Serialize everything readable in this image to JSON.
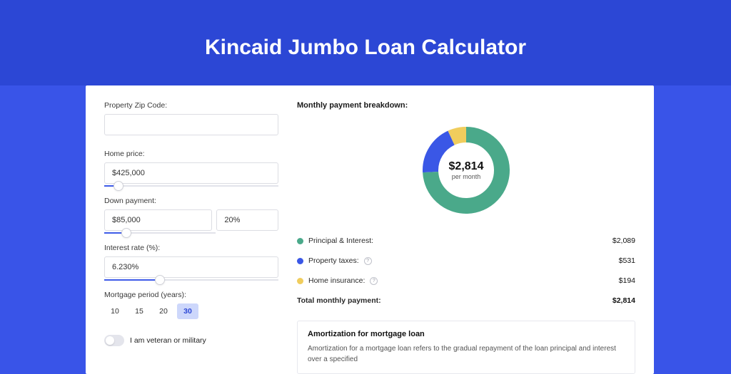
{
  "page": {
    "title": "Kincaid Jumbo Loan Calculator",
    "colors": {
      "page_bg": "#3954e8",
      "header_bg": "#2c47d5",
      "accent": "#3e5be8"
    }
  },
  "form": {
    "zip": {
      "label": "Property Zip Code:",
      "value": ""
    },
    "home_price": {
      "label": "Home price:",
      "value": "$425,000",
      "slider_pct": 8
    },
    "down_payment": {
      "label": "Down payment:",
      "value": "$85,000",
      "pct_value": "20%",
      "slider_pct": 20,
      "slider_track_is_partial": true
    },
    "interest_rate": {
      "label": "Interest rate (%):",
      "value": "6.230%",
      "slider_pct": 32
    },
    "period": {
      "label": "Mortgage period (years):",
      "options": [
        "10",
        "15",
        "20",
        "30"
      ],
      "selected": "30"
    },
    "veteran": {
      "label": "I am veteran or military",
      "checked": false
    }
  },
  "breakdown": {
    "title": "Monthly payment breakdown:",
    "center_amount": "$2,814",
    "center_sub": "per month",
    "donut": {
      "size": 122,
      "thickness": 22,
      "slices": [
        {
          "label": "Principal & Interest:",
          "value": "$2,089",
          "portion": 0.742,
          "color": "#4aa98a",
          "has_info": false
        },
        {
          "label": "Property taxes:",
          "value": "$531",
          "portion": 0.189,
          "color": "#3a57e6",
          "has_info": true
        },
        {
          "label": "Home insurance:",
          "value": "$194",
          "portion": 0.069,
          "color": "#f0cd5d",
          "has_info": true
        }
      ]
    },
    "total": {
      "label": "Total monthly payment:",
      "value": "$2,814"
    }
  },
  "amortization": {
    "title": "Amortization for mortgage loan",
    "text": "Amortization for a mortgage loan refers to the gradual repayment of the loan principal and interest over a specified"
  }
}
